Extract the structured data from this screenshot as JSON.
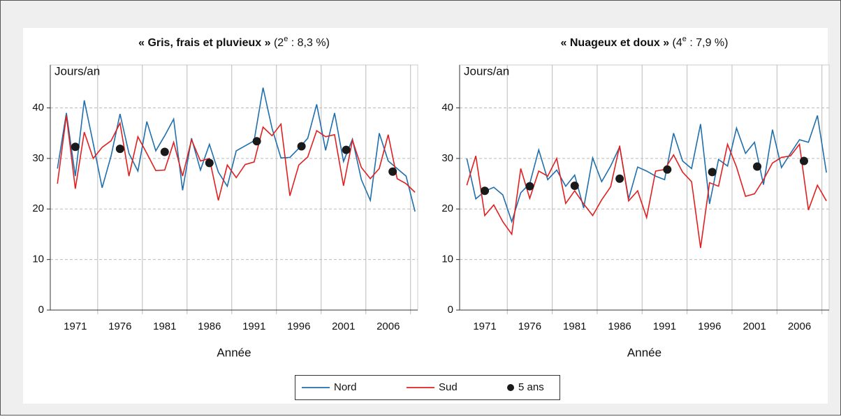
{
  "chart_data": [
    {
      "type": "line",
      "title_bold": "« Gris, frais et pluvieux »",
      "title_open": " (2",
      "title_sup": "e",
      "title_rest": " : 8,3 %)",
      "ylabel": "Jours/an",
      "xlabel": "Année",
      "x": [
        1969,
        1970,
        1971,
        1972,
        1973,
        1974,
        1975,
        1976,
        1977,
        1978,
        1979,
        1980,
        1981,
        1982,
        1983,
        1984,
        1985,
        1986,
        1987,
        1988,
        1989,
        1990,
        1991,
        1992,
        1993,
        1994,
        1995,
        1996,
        1997,
        1998,
        1999,
        2000,
        2001,
        2002,
        2003,
        2004,
        2005,
        2006,
        2007,
        2008,
        2009
      ],
      "series": [
        {
          "name": "Nord",
          "color": "#1f6fad",
          "values": [
            28,
            39,
            26.5,
            41.5,
            33,
            24.2,
            30.5,
            38.8,
            31,
            27.5,
            37.3,
            31.5,
            34.5,
            37.8,
            23.7,
            34,
            27.7,
            32.8,
            27.3,
            24.5,
            31.5,
            32.5,
            33.5,
            44,
            36,
            30.1,
            30.2,
            32,
            34,
            40.7,
            31.6,
            39,
            29.4,
            33.8,
            25.8,
            21.7,
            35,
            29.5,
            28,
            26.5,
            19.5
          ]
        },
        {
          "name": "Sud",
          "color": "#e02020",
          "values": [
            25,
            38.5,
            24,
            35.2,
            30,
            32.2,
            33.5,
            37,
            26.5,
            34.3,
            31,
            27.6,
            27.7,
            33.2,
            26.5,
            33.7,
            29.5,
            30,
            21.7,
            28.7,
            26.2,
            28.8,
            29.3,
            36.2,
            34.5,
            36.8,
            22.6,
            28.7,
            30.3,
            35.5,
            34.3,
            34.7,
            24.6,
            33.6,
            28.2,
            26,
            28,
            34.7,
            26,
            25,
            23.3
          ]
        },
        {
          "name": "5 ans",
          "color": "#1a1a1a",
          "marker": "dot",
          "x": [
            1971,
            1976,
            1981,
            1986,
            1991.3,
            1996.3,
            2001.3,
            2006.5
          ],
          "values": [
            32.3,
            31.9,
            31.3,
            29.1,
            33.4,
            32.4,
            31.7,
            27.4
          ]
        }
      ],
      "xlim": [
        1968.2,
        2009.3
      ],
      "xticks": [
        1971,
        1976,
        1981,
        1986,
        1991,
        1996,
        2001,
        2006
      ],
      "xgrid": [
        1973.5,
        1978.5,
        1983.5,
        1988.5,
        1993.5,
        1998.5,
        2003.5,
        2008.5
      ],
      "ylim": [
        0,
        48.5
      ],
      "yticks": [
        0,
        10,
        20,
        30,
        40
      ],
      "grid": true
    },
    {
      "type": "line",
      "title_bold": "« Nuageux et doux »",
      "title_open": " (4",
      "title_sup": "e",
      "title_rest": " : 7,9 %)",
      "ylabel": "Jours/an",
      "xlabel": "Année",
      "x": [
        1969,
        1970,
        1971,
        1972,
        1973,
        1974,
        1975,
        1976,
        1977,
        1978,
        1979,
        1980,
        1981,
        1982,
        1983,
        1984,
        1985,
        1986,
        1987,
        1988,
        1989,
        1990,
        1991,
        1992,
        1993,
        1994,
        1995,
        1996,
        1997,
        1998,
        1999,
        2000,
        2001,
        2002,
        2003,
        2004,
        2005,
        2006,
        2007,
        2008,
        2009
      ],
      "series": [
        {
          "name": "Nord",
          "color": "#1f6fad",
          "values": [
            30,
            22,
            23.5,
            24.3,
            22.8,
            17.5,
            23.2,
            25,
            31.7,
            25.8,
            27.7,
            24.5,
            26.7,
            20.2,
            30.1,
            25.4,
            28.5,
            32.3,
            22,
            28.3,
            27.5,
            26.5,
            25.8,
            35,
            29.5,
            28,
            36.8,
            21,
            29.8,
            28.5,
            36,
            31,
            33.2,
            24.8,
            35.7,
            28.2,
            31,
            33.7,
            33.2,
            38.5,
            27.2
          ]
        },
        {
          "name": "Sud",
          "color": "#e02020",
          "values": [
            24.7,
            30.5,
            18.7,
            20.8,
            17.5,
            15,
            28,
            22.1,
            27.5,
            26.5,
            30,
            21.1,
            23.6,
            21,
            18.7,
            21.8,
            24.4,
            32.5,
            21.6,
            23.6,
            18.3,
            27.5,
            27.8,
            30.7,
            27.3,
            25.4,
            12.3,
            25.2,
            24.5,
            32.8,
            28.3,
            22.5,
            23,
            25.8,
            29.1,
            30.2,
            30.5,
            32.8,
            19.8,
            24.7,
            21.6
          ]
        },
        {
          "name": "5 ans",
          "color": "#1a1a1a",
          "marker": "dot",
          "x": [
            1971,
            1976,
            1981,
            1986,
            1991.3,
            1996.3,
            2001.3,
            2006.5
          ],
          "values": [
            23.6,
            24.5,
            24.6,
            26,
            27.8,
            27.3,
            28.4,
            29.5
          ]
        }
      ],
      "xlim": [
        1968.2,
        2009.3
      ],
      "xticks": [
        1971,
        1976,
        1981,
        1986,
        1991,
        1996,
        2001,
        2006
      ],
      "xgrid": [
        1973.5,
        1978.5,
        1983.5,
        1988.5,
        1993.5,
        1998.5,
        2003.5,
        2008.5
      ],
      "ylim": [
        0,
        48.5
      ],
      "yticks": [
        0,
        10,
        20,
        30,
        40
      ],
      "grid": true
    }
  ]
}
